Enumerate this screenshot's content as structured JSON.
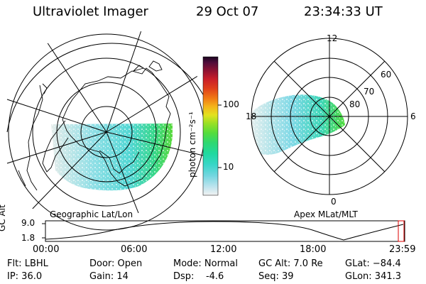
{
  "header": {
    "instrument": "Ultraviolet Imager",
    "date": "29 Oct 07",
    "time": "23:34:33 UT"
  },
  "colorbar": {
    "unit_label": "photon cm⁻²s⁻¹",
    "ticks": [
      "100",
      "10"
    ],
    "colors": [
      "#f2f2f2",
      "#bfe4ee",
      "#74d6e0",
      "#38d6c8",
      "#20d9a0",
      "#2fd870",
      "#55dd3c",
      "#9ae024",
      "#e3e21e",
      "#f4b41a",
      "#f07a14",
      "#e0401a",
      "#c81e2a",
      "#8e1232",
      "#4e0c3a",
      "#1a0620"
    ]
  },
  "left_map": {
    "label": "Geographic Lat/Lon"
  },
  "right_map": {
    "label": "Apex MLat/MLT",
    "mlt_labels": [
      "12",
      "18",
      "6",
      "0"
    ],
    "lat_labels": [
      "60",
      "70",
      "80"
    ]
  },
  "timeline": {
    "ylabel": "GC Alt",
    "y_max": "9.0",
    "y_min": "1.8",
    "time_labels": [
      "00:00",
      "06:00",
      "12:00",
      "18:00",
      "23:59"
    ]
  },
  "status": {
    "row1": {
      "flt": "Flt: LBHL",
      "door": "Door: Open",
      "mode": "Mode: Normal",
      "gc_alt": "GC Alt: 7.0 Re",
      "glat": "GLat: −84.4"
    },
    "row2": {
      "ip": "IP: 36.0",
      "gain": "Gain: 14",
      "dsp": "Dsp:    -4.6",
      "seq": "Seq: 39",
      "glon": "GLon: 341.3"
    }
  }
}
